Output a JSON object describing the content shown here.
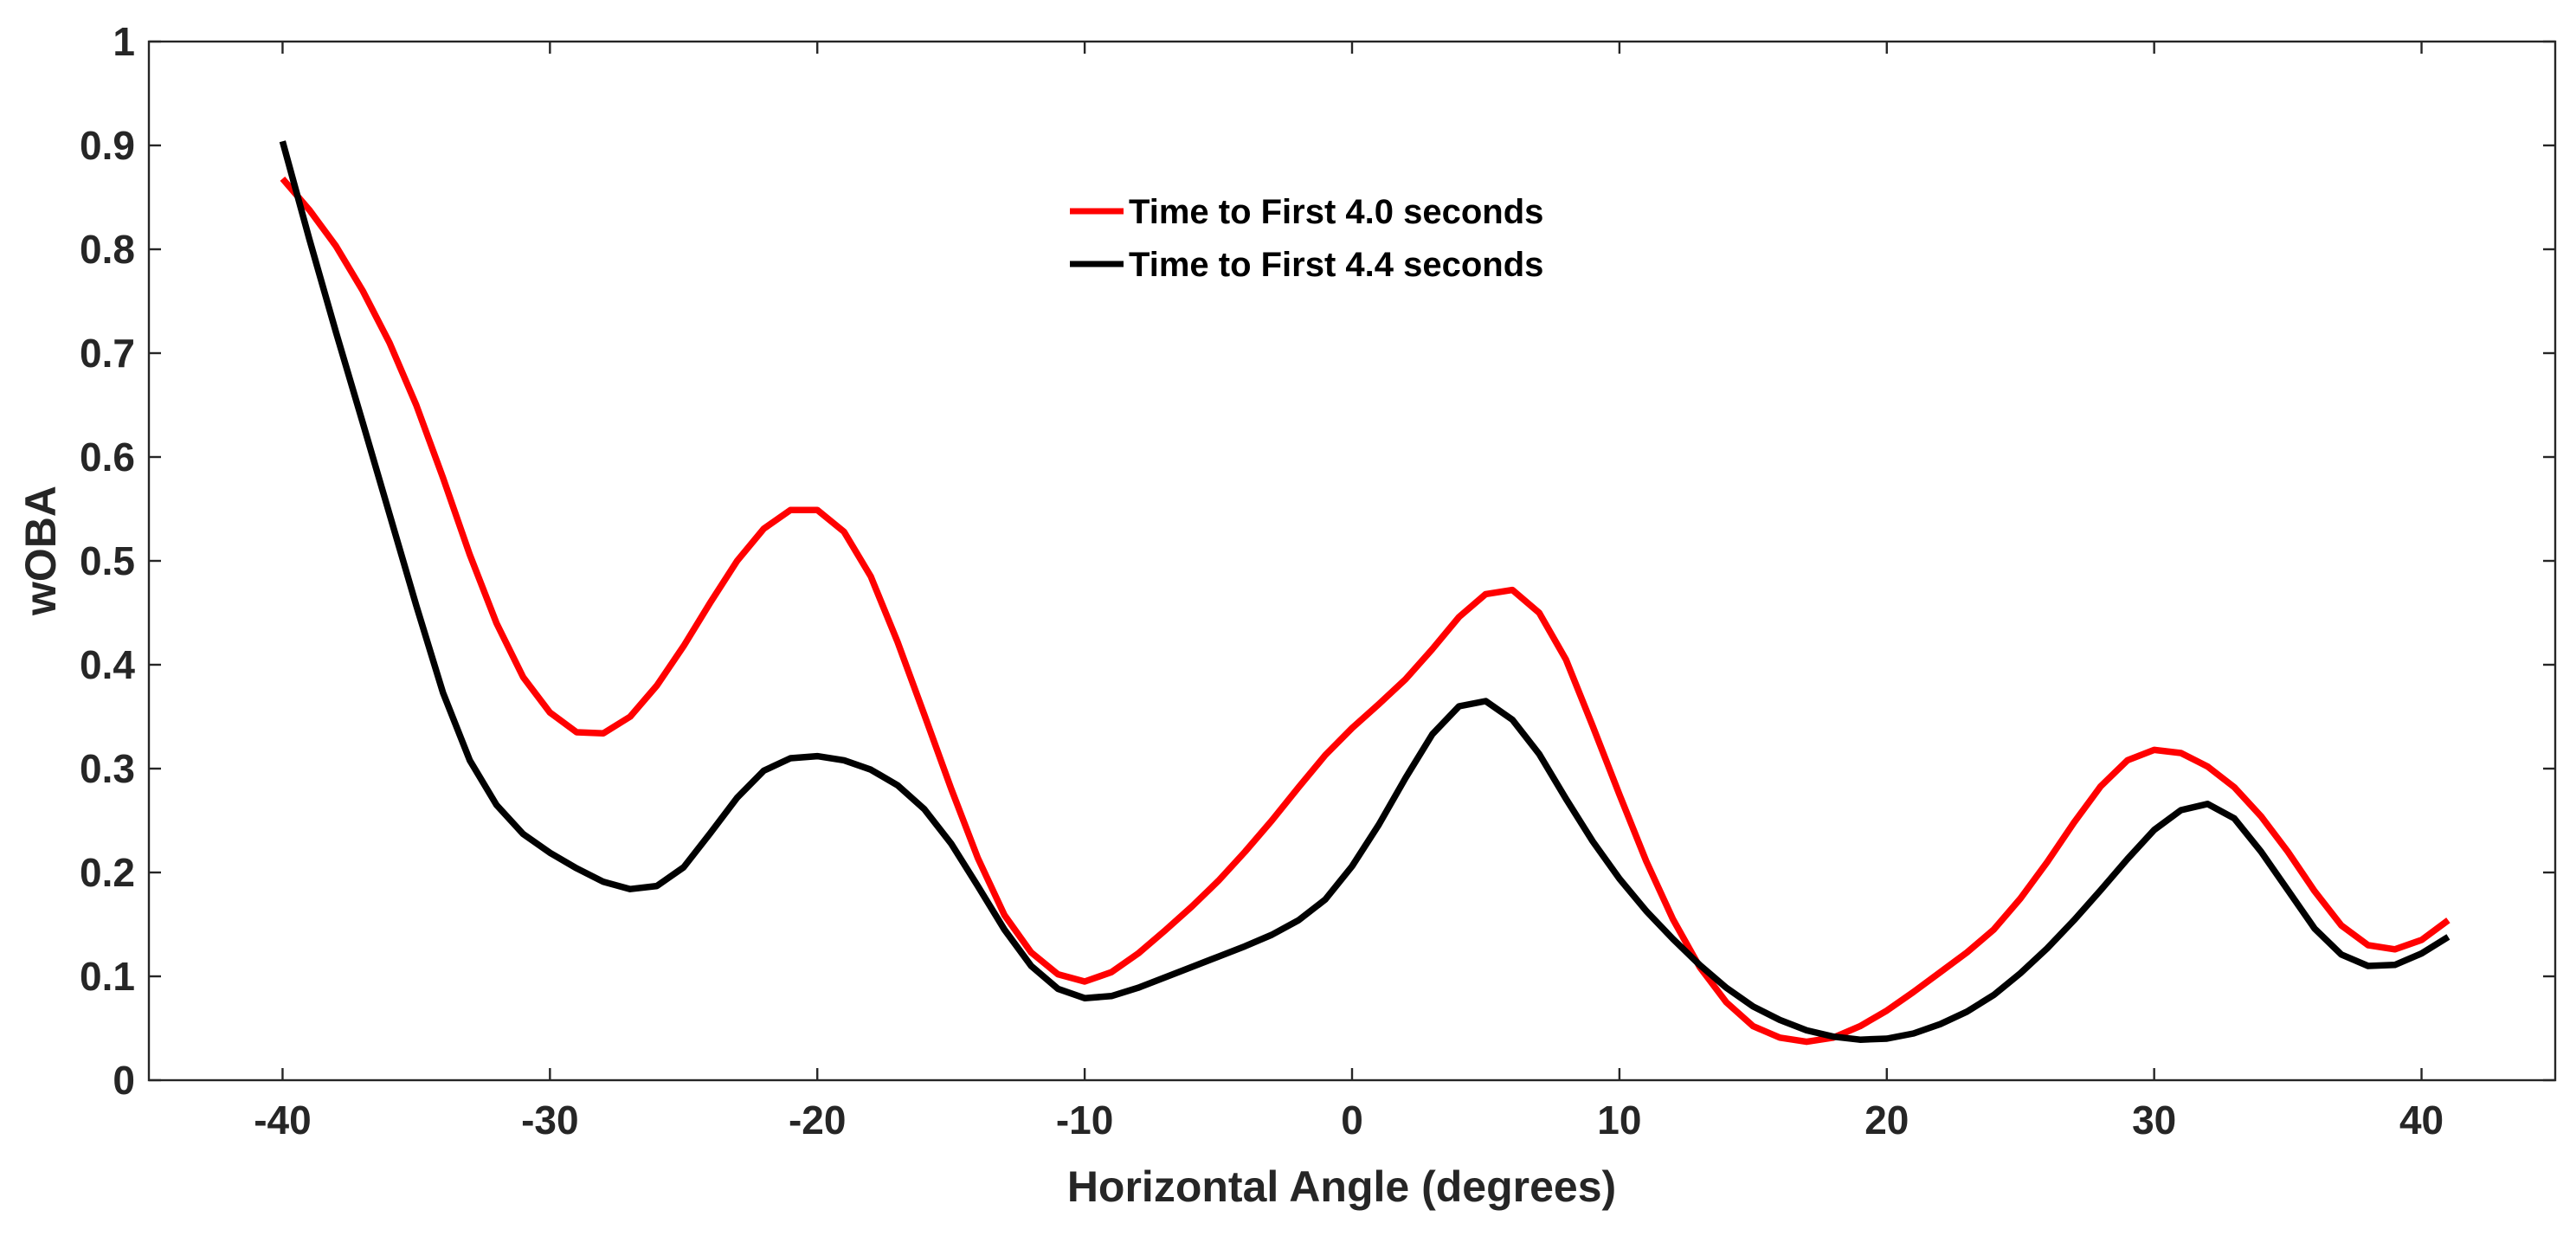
{
  "chart_data": {
    "type": "line",
    "title": "",
    "xlabel": "Horizontal Angle (degrees)",
    "ylabel": "wOBA",
    "xlim": [
      -45,
      45
    ],
    "ylim": [
      0,
      1
    ],
    "xticks": [
      -40,
      -30,
      -20,
      -10,
      0,
      10,
      20,
      30,
      40
    ],
    "xtick_labels": [
      "-40",
      "-30",
      "-20",
      "-10",
      "0",
      "10",
      "20",
      "30",
      "40"
    ],
    "yticks": [
      0,
      0.1,
      0.2,
      0.3,
      0.4,
      0.5,
      0.6,
      0.7,
      0.8,
      0.9,
      1
    ],
    "ytick_labels": [
      "0",
      "0.1",
      "0.2",
      "0.3",
      "0.4",
      "0.5",
      "0.6",
      "0.7",
      "0.8",
      "0.9",
      "1"
    ],
    "grid": false,
    "legend_position": "top-center",
    "x": [
      -40,
      -39,
      -38,
      -37,
      -36,
      -35,
      -34,
      -33,
      -32,
      -31,
      -30,
      -29,
      -28,
      -27,
      -26,
      -25,
      -24,
      -23,
      -22,
      -21,
      -20,
      -19,
      -18,
      -17,
      -16,
      -15,
      -14,
      -13,
      -12,
      -11,
      -10,
      -9,
      -8,
      -7,
      -6,
      -5,
      -4,
      -3,
      -2,
      -1,
      0,
      1,
      2,
      3,
      4,
      5,
      6,
      7,
      8,
      9,
      10,
      11,
      12,
      13,
      14,
      15,
      16,
      17,
      18,
      19,
      20,
      21,
      22,
      23,
      24,
      25,
      26,
      27,
      28,
      29,
      30,
      31,
      32,
      33,
      34,
      35,
      36,
      37,
      38,
      39,
      40,
      41
    ],
    "series": [
      {
        "name": "Time to First 4.0 seconds",
        "color": "#ff0000",
        "values": [
          0.868,
          0.838,
          0.803,
          0.76,
          0.71,
          0.65,
          0.58,
          0.506,
          0.44,
          0.388,
          0.354,
          0.335,
          0.334,
          0.35,
          0.38,
          0.418,
          0.46,
          0.5,
          0.531,
          0.549,
          0.549,
          0.528,
          0.485,
          0.422,
          0.352,
          0.281,
          0.214,
          0.159,
          0.123,
          0.102,
          0.095,
          0.104,
          0.122,
          0.144,
          0.167,
          0.192,
          0.22,
          0.25,
          0.282,
          0.313,
          0.339,
          0.362,
          0.386,
          0.415,
          0.446,
          0.468,
          0.472,
          0.45,
          0.405,
          0.341,
          0.275,
          0.211,
          0.155,
          0.109,
          0.075,
          0.052,
          0.041,
          0.037,
          0.041,
          0.052,
          0.067,
          0.085,
          0.104,
          0.123,
          0.145,
          0.175,
          0.21,
          0.248,
          0.283,
          0.308,
          0.318,
          0.315,
          0.302,
          0.282,
          0.254,
          0.22,
          0.182,
          0.149,
          0.13,
          0.126,
          0.135,
          0.154
        ]
      },
      {
        "name": "Time to First 4.4 seconds",
        "color": "#000000",
        "values": [
          0.904,
          0.81,
          0.72,
          0.633,
          0.545,
          0.457,
          0.373,
          0.308,
          0.265,
          0.237,
          0.219,
          0.204,
          0.191,
          0.184,
          0.187,
          0.205,
          0.238,
          0.272,
          0.298,
          0.31,
          0.312,
          0.308,
          0.299,
          0.284,
          0.261,
          0.228,
          0.187,
          0.145,
          0.11,
          0.088,
          0.079,
          0.081,
          0.089,
          0.099,
          0.109,
          0.119,
          0.129,
          0.14,
          0.154,
          0.174,
          0.206,
          0.246,
          0.291,
          0.333,
          0.36,
          0.365,
          0.347,
          0.314,
          0.271,
          0.23,
          0.194,
          0.163,
          0.136,
          0.111,
          0.089,
          0.071,
          0.058,
          0.048,
          0.042,
          0.039,
          0.04,
          0.045,
          0.054,
          0.066,
          0.082,
          0.103,
          0.127,
          0.154,
          0.183,
          0.213,
          0.241,
          0.26,
          0.266,
          0.252,
          0.22,
          0.183,
          0.146,
          0.121,
          0.11,
          0.111,
          0.122,
          0.138
        ]
      }
    ]
  }
}
